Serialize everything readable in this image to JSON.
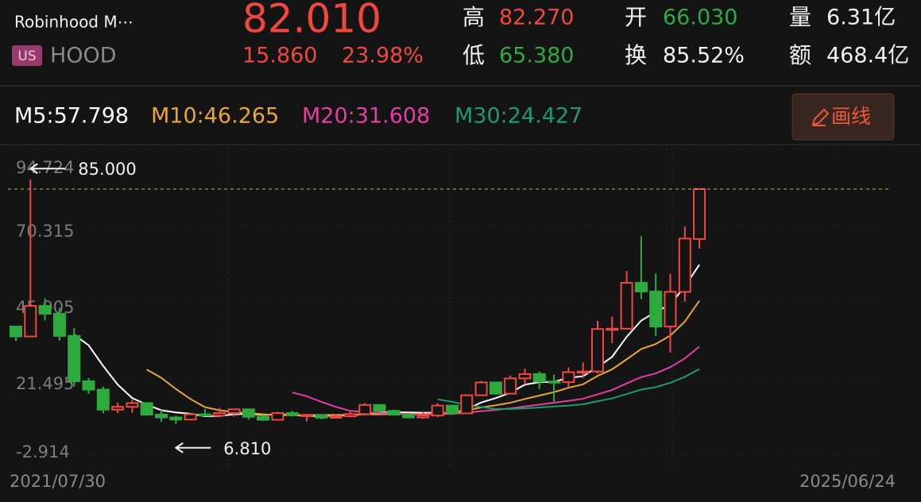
{
  "header": {
    "name": "Robinhood M⋯",
    "market": "US",
    "ticker": "HOOD",
    "price": "82.010",
    "change": "15.860",
    "change_pct": "23.98%",
    "high_label": "高",
    "high": "82.270",
    "low_label": "低",
    "low": "65.380",
    "open_label": "开",
    "open": "66.030",
    "turnover_label": "换",
    "turnover": "85.52%",
    "volume_label": "量",
    "volume": "6.31亿",
    "amount_label": "额",
    "amount": "468.4亿",
    "draw_button": "画线"
  },
  "chart_data": {
    "type": "candlestick",
    "up_color": "#f0483e",
    "down_color": "#2dab3f",
    "ylim": [
      -2.914,
      94.724
    ],
    "yticks": [
      94.724,
      70.315,
      45.905,
      21.495,
      -2.914
    ],
    "grid": true,
    "x_start_label": "2021/07/30",
    "x_end_label": "2025/06/24",
    "open": [
      38,
      34.82,
      44.6,
      42.08,
      35,
      20.5,
      17.8,
      11.4,
      12.3,
      13.5,
      9.8,
      8.9,
      8.22,
      9.9,
      9.5,
      10.3,
      11.5,
      9.1,
      8.14,
      10.3,
      9.7,
      9.7,
      8.8,
      9.3,
      9.98,
      12.9,
      11,
      9.8,
      8.9,
      9.5,
      12.7,
      10.2,
      16,
      20.1,
      16.5,
      21.4,
      22.8,
      20.4,
      20.2,
      23.4,
      23.6,
      37.2,
      37.3,
      52,
      49.2,
      38,
      49.1,
      66.03
    ],
    "high": [
      38.2,
      85,
      47,
      44,
      37.5,
      21.5,
      18.8,
      13.6,
      14.5,
      13.6,
      11.3,
      9.5,
      10.4,
      11.6,
      12,
      11.7,
      11.6,
      9.7,
      10.7,
      11,
      10,
      9.9,
      9.9,
      10.7,
      13.5,
      13.1,
      11.4,
      10.3,
      10.6,
      13.5,
      12.9,
      16.3,
      20.6,
      20.2,
      22.3,
      24.5,
      23.6,
      22.6,
      24.9,
      26.5,
      39.8,
      41.2,
      55.8,
      66.9,
      55,
      54.9,
      70,
      82.27
    ],
    "low": [
      33.35,
      34.8,
      40,
      33.5,
      18.8,
      16.5,
      10.2,
      10.3,
      10.4,
      9.4,
      7.5,
      6.81,
      8.1,
      9.3,
      9,
      9.2,
      8.2,
      7.8,
      8.1,
      9.2,
      7.6,
      8.3,
      8.5,
      8.9,
      9.9,
      10.6,
      9.5,
      8.6,
      8.5,
      9,
      9.8,
      10,
      15.8,
      16.2,
      16.5,
      19.4,
      18,
      13.9,
      18.6,
      21.5,
      23,
      32.7,
      37,
      46.8,
      35,
      29.7,
      46,
      63
    ],
    "close": [
      34.82,
      44.6,
      42.08,
      35,
      20.5,
      17.8,
      11.4,
      12.3,
      13.5,
      9.8,
      8.9,
      8.22,
      9.9,
      9.5,
      10.3,
      11.5,
      9.1,
      8.14,
      10.3,
      9.7,
      9.7,
      8.8,
      9.3,
      9.98,
      12.9,
      11,
      9.8,
      8.9,
      9.5,
      12.7,
      10.2,
      16,
      20.1,
      16.5,
      21.4,
      22.8,
      20.4,
      20.2,
      23.4,
      23.6,
      37.2,
      37.3,
      52,
      49.2,
      38,
      49.1,
      66.15,
      82.01
    ],
    "annotations": [
      {
        "value": 85,
        "label": "85.000"
      },
      {
        "value": 6.81,
        "label": "6.810"
      }
    ],
    "series": [
      {
        "name": "M5:57.798",
        "color": "#ffffff",
        "values": [
          null,
          null,
          null,
          null,
          35.4,
          32.0,
          25.4,
          19.4,
          15.1,
          13.0,
          11.2,
          10.5,
          10.1,
          9.3,
          9.4,
          9.9,
          10.1,
          9.7,
          9.9,
          9.7,
          9.4,
          9.3,
          9.6,
          9.5,
          10.1,
          10.4,
          10.6,
          10.5,
          10.4,
          10.4,
          10.2,
          11.5,
          13.7,
          15.1,
          16.8,
          19.4,
          20.2,
          20.3,
          21.6,
          22.1,
          25.0,
          28.3,
          34.7,
          39.9,
          42.7,
          45.1,
          50.8,
          57.798
        ]
      },
      {
        "name": "M10:46.265",
        "color": "#e9a53b",
        "values": [
          null,
          null,
          null,
          null,
          null,
          null,
          null,
          null,
          null,
          24.2,
          21.6,
          18.0,
          14.8,
          12.2,
          11.2,
          10.6,
          10.3,
          9.9,
          9.6,
          9.6,
          9.7,
          9.7,
          9.7,
          9.7,
          9.9,
          9.9,
          10.0,
          10.1,
          10.0,
          10.3,
          10.3,
          11.1,
          12.1,
          12.8,
          13.6,
          14.8,
          15.9,
          17.0,
          18.4,
          19.5,
          22.2,
          24.3,
          27.5,
          30.8,
          32.4,
          35.1,
          39.6,
          46.265
        ]
      },
      {
        "name": "M20:31.608",
        "color": "#e23fa3",
        "values": [
          null,
          null,
          null,
          null,
          null,
          null,
          null,
          null,
          null,
          null,
          null,
          null,
          null,
          null,
          null,
          null,
          null,
          null,
          null,
          16.9,
          15.7,
          13.9,
          12.3,
          11.0,
          10.6,
          10.3,
          10.2,
          10.0,
          9.8,
          10.0,
          10.0,
          10.4,
          10.9,
          11.3,
          11.8,
          12.4,
          13.0,
          13.6,
          14.2,
          14.9,
          16.3,
          17.7,
          19.8,
          21.8,
          23.0,
          25.0,
          27.8,
          31.608
        ]
      },
      {
        "name": "M30:24.427",
        "color": "#1c9a6c",
        "values": [
          null,
          null,
          null,
          null,
          null,
          null,
          null,
          null,
          null,
          null,
          null,
          null,
          null,
          null,
          null,
          null,
          null,
          null,
          null,
          null,
          null,
          null,
          null,
          null,
          null,
          null,
          null,
          null,
          null,
          14.7,
          13.9,
          12.9,
          12.2,
          11.6,
          11.6,
          11.8,
          12.1,
          12.4,
          12.7,
          13.1,
          14.1,
          15.0,
          16.4,
          17.8,
          18.6,
          20.0,
          21.9,
          24.427
        ]
      }
    ]
  }
}
